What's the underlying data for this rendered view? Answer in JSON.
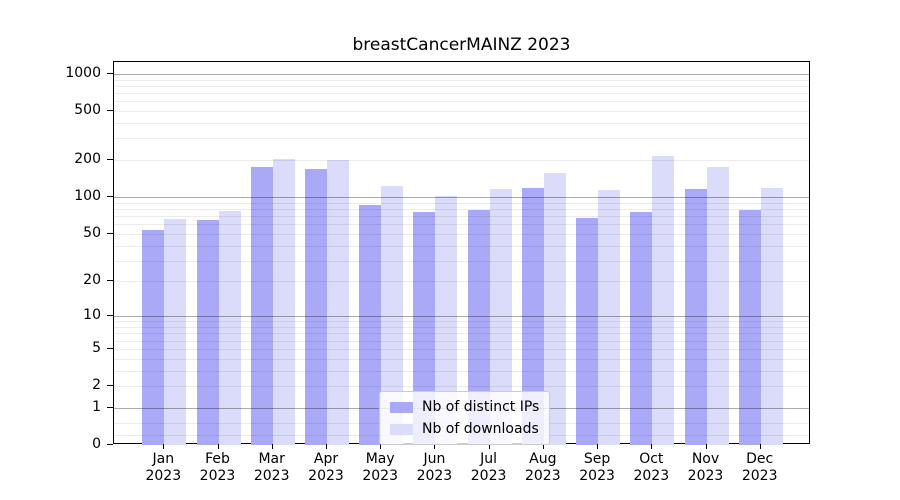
{
  "title": "breastCancerMAINZ 2023",
  "chart_data": {
    "type": "bar",
    "title": "breastCancerMAINZ 2023",
    "categories": [
      "Jan",
      "Feb",
      "Mar",
      "Apr",
      "May",
      "Jun",
      "Jul",
      "Aug",
      "Sep",
      "Oct",
      "Nov",
      "Dec"
    ],
    "category_year": "2023",
    "series": [
      {
        "name": "Nb of distinct IPs",
        "color": "#a9a9f7",
        "values": [
          54,
          65,
          176,
          170,
          87,
          76,
          78,
          119,
          67,
          75,
          116,
          79
        ]
      },
      {
        "name": "Nb of downloads",
        "color": "#dbdbfa",
        "values": [
          66,
          77,
          205,
          200,
          123,
          102,
          116,
          158,
          114,
          216,
          177,
          118
        ]
      }
    ],
    "yscale": "log10(value+1)",
    "ytick_labels": [
      "1000",
      "500",
      "200",
      "100",
      "50",
      "20",
      "10",
      "5",
      "2",
      "1",
      "0"
    ],
    "ytick_values": [
      1000,
      500,
      200,
      100,
      50,
      20,
      10,
      5,
      2,
      1,
      0
    ],
    "major_grid_values": [
      1,
      10,
      100,
      1000
    ],
    "ylim": [
      0,
      1250
    ],
    "xlabel": "",
    "ylabel": "",
    "grid": true,
    "legend_position": "lower center",
    "colors": {
      "bar_distinct_ips": "#a9a9f7",
      "bar_downloads": "#dbdbfa",
      "major_grid": "#ababab",
      "minor_grid": "#ececec",
      "axis": "#000000",
      "background": "#ffffff"
    }
  }
}
